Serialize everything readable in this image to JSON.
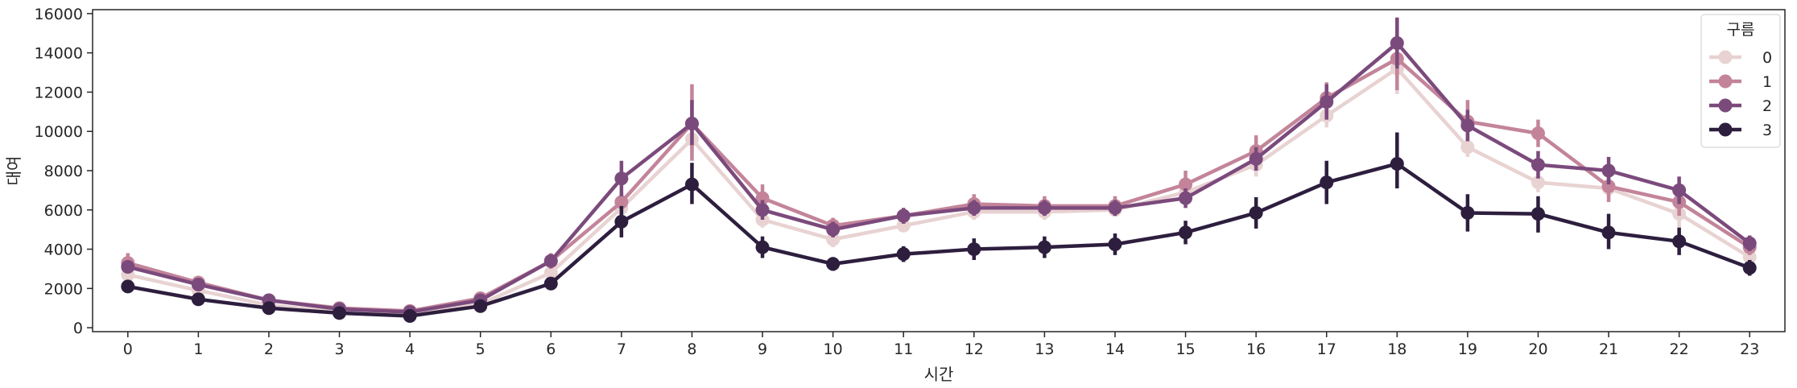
{
  "chart_data": {
    "type": "line",
    "title": "",
    "xlabel": "시간",
    "ylabel": "대여",
    "x": [
      0,
      1,
      2,
      3,
      4,
      5,
      6,
      7,
      8,
      9,
      10,
      11,
      12,
      13,
      14,
      15,
      16,
      17,
      18,
      19,
      20,
      21,
      22,
      23
    ],
    "x_tick_labels": [
      "0",
      "1",
      "2",
      "3",
      "4",
      "5",
      "6",
      "7",
      "8",
      "9",
      "10",
      "11",
      "12",
      "13",
      "14",
      "15",
      "16",
      "17",
      "18",
      "19",
      "20",
      "21",
      "22",
      "23"
    ],
    "ylim": [
      -200,
      16200
    ],
    "y_ticks": [
      0,
      2000,
      4000,
      6000,
      8000,
      10000,
      12000,
      14000,
      16000
    ],
    "y_tick_labels": [
      "0",
      "2000",
      "4000",
      "6000",
      "8000",
      "10000",
      "12000",
      "14000",
      "16000"
    ],
    "grid": false,
    "legend": {
      "title": "구름",
      "placement": "top-right"
    },
    "series": [
      {
        "name": "0",
        "color": "#e8d2d2",
        "values": [
          2700,
          1900,
          1150,
          800,
          700,
          1200,
          2800,
          6100,
          9600,
          5500,
          4500,
          5200,
          5900,
          5900,
          6000,
          6900,
          8300,
          10800,
          13200,
          9200,
          7400,
          7100,
          5800,
          3600
        ],
        "err_low": [
          2300,
          1700,
          1000,
          700,
          600,
          1050,
          2500,
          5600,
          8700,
          5100,
          4100,
          4900,
          5500,
          5500,
          5700,
          6400,
          7700,
          10200,
          11900,
          8700,
          6900,
          6600,
          5100,
          3200
        ],
        "err_high": [
          3100,
          2100,
          1300,
          900,
          800,
          1350,
          3100,
          6600,
          10500,
          5900,
          4900,
          5500,
          6300,
          6300,
          6300,
          7400,
          8900,
          11400,
          14500,
          9700,
          7900,
          7600,
          6500,
          4000
        ]
      },
      {
        "name": "1",
        "color": "#c3849a",
        "values": [
          3300,
          2300,
          1400,
          1000,
          850,
          1500,
          3400,
          6400,
          10400,
          6600,
          5200,
          5700,
          6300,
          6200,
          6200,
          7300,
          9000,
          11700,
          13700,
          10500,
          9900,
          7200,
          6400,
          4100
        ],
        "err_low": [
          2800,
          2000,
          1200,
          850,
          700,
          1300,
          3000,
          5900,
          8500,
          5900,
          4800,
          5300,
          5800,
          5700,
          5700,
          6600,
          8200,
          10900,
          12100,
          9500,
          9200,
          6400,
          5700,
          3700
        ],
        "err_high": [
          3800,
          2600,
          1600,
          1150,
          1000,
          1700,
          3800,
          6900,
          12400,
          7300,
          5600,
          6100,
          6800,
          6700,
          6700,
          8000,
          9800,
          12500,
          15300,
          11600,
          10600,
          8000,
          7100,
          4500
        ]
      },
      {
        "name": "2",
        "color": "#7b4a7c",
        "values": [
          3100,
          2200,
          1400,
          950,
          800,
          1400,
          3400,
          7600,
          10400,
          6000,
          5000,
          5700,
          6100,
          6100,
          6100,
          6600,
          8600,
          11500,
          14500,
          10300,
          8300,
          8000,
          7000,
          4300
        ],
        "err_low": [
          2800,
          2000,
          1250,
          850,
          700,
          1250,
          3050,
          6700,
          9300,
          5500,
          4600,
          5300,
          5700,
          5700,
          5700,
          6100,
          8000,
          10600,
          13200,
          9500,
          7600,
          7300,
          6300,
          3900
        ],
        "err_high": [
          3400,
          2400,
          1550,
          1050,
          900,
          1550,
          3750,
          8500,
          11600,
          6500,
          5400,
          6100,
          6500,
          6500,
          6500,
          7100,
          9200,
          12400,
          15800,
          11100,
          9000,
          8700,
          7700,
          4700
        ]
      },
      {
        "name": "3",
        "color": "#2d1e3e",
        "values": [
          2100,
          1450,
          1000,
          750,
          600,
          1100,
          2250,
          5400,
          7300,
          4100,
          3250,
          3750,
          4000,
          4100,
          4250,
          4850,
          5850,
          7400,
          8350,
          5850,
          5800,
          4850,
          4400,
          3050
        ],
        "err_low": [
          1850,
          1300,
          850,
          650,
          500,
          950,
          2000,
          4600,
          6300,
          3550,
          2900,
          3350,
          3450,
          3550,
          3700,
          4250,
          5050,
          6300,
          7100,
          4900,
          4850,
          4000,
          3700,
          2650
        ],
        "err_high": [
          2350,
          1600,
          1150,
          850,
          700,
          1250,
          2500,
          6200,
          8400,
          4650,
          3600,
          4150,
          4550,
          4650,
          4800,
          5450,
          6650,
          8500,
          9950,
          6800,
          6700,
          5800,
          5100,
          3450
        ]
      }
    ]
  }
}
